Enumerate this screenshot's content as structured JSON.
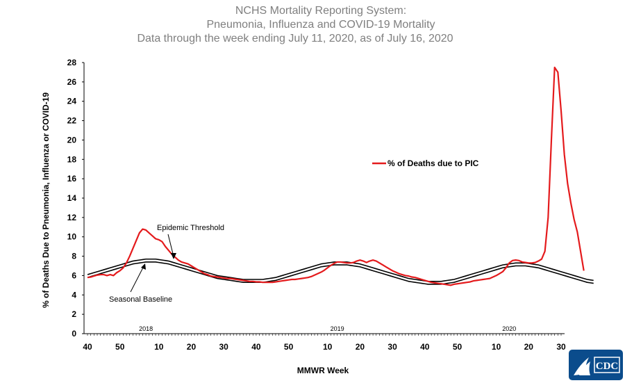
{
  "chart_data": {
    "type": "line",
    "title": [
      "NCHS Mortality Reporting System:",
      "Pneumonia, Influenza and COVID-19 Mortality",
      "Data through the week ending July 11, 2020, as of July 16, 2020"
    ],
    "xlabel": "MMWR Week",
    "ylabel": "% of Deaths Due to Pneumonia, Influenza or  COVID-19",
    "ylim": [
      0,
      28
    ],
    "yticks": [
      0,
      2,
      4,
      6,
      8,
      10,
      12,
      14,
      16,
      18,
      20,
      22,
      24,
      26,
      28
    ],
    "x_tick_labels": [
      {
        "label": "40",
        "index": 0
      },
      {
        "label": "50",
        "index": 10
      },
      {
        "label": "10",
        "index": 22
      },
      {
        "label": "20",
        "index": 32
      },
      {
        "label": "30",
        "index": 42
      },
      {
        "label": "40",
        "index": 52
      },
      {
        "label": "50",
        "index": 62
      },
      {
        "label": "10",
        "index": 74
      },
      {
        "label": "20",
        "index": 84
      },
      {
        "label": "30",
        "index": 94
      },
      {
        "label": "40",
        "index": 104
      },
      {
        "label": "50",
        "index": 114
      },
      {
        "label": "10",
        "index": 126
      },
      {
        "label": "20",
        "index": 136
      },
      {
        "label": "30",
        "index": 146
      }
    ],
    "year_labels": [
      {
        "label": "2018",
        "index": 18
      },
      {
        "label": "2019",
        "index": 77
      },
      {
        "label": "2020",
        "index": 130
      }
    ],
    "x_count": 147,
    "series": [
      {
        "name": "% of Deaths due to PIC",
        "color": "#e41a1c",
        "values": [
          5.8,
          5.85,
          5.95,
          6.05,
          6.1,
          6.1,
          6.0,
          6.1,
          6.0,
          6.3,
          6.5,
          6.8,
          7.3,
          8.0,
          8.8,
          9.6,
          10.4,
          10.8,
          10.7,
          10.4,
          10.1,
          9.8,
          9.7,
          9.5,
          9.0,
          8.6,
          8.2,
          7.9,
          7.6,
          7.4,
          7.3,
          7.2,
          7.0,
          6.8,
          6.6,
          6.4,
          6.2,
          6.1,
          5.95,
          5.9,
          5.85,
          5.8,
          5.75,
          5.7,
          5.7,
          5.65,
          5.6,
          5.55,
          5.5,
          5.45,
          5.4,
          5.4,
          5.35,
          5.35,
          5.3,
          5.3,
          5.3,
          5.3,
          5.35,
          5.4,
          5.45,
          5.5,
          5.55,
          5.6,
          5.6,
          5.65,
          5.7,
          5.75,
          5.8,
          5.9,
          6.05,
          6.2,
          6.35,
          6.55,
          6.8,
          7.05,
          7.25,
          7.4,
          7.4,
          7.35,
          7.3,
          7.3,
          7.35,
          7.5,
          7.6,
          7.5,
          7.35,
          7.5,
          7.6,
          7.5,
          7.3,
          7.1,
          6.9,
          6.7,
          6.5,
          6.35,
          6.2,
          6.1,
          6.0,
          5.95,
          5.85,
          5.8,
          5.7,
          5.6,
          5.5,
          5.4,
          5.3,
          5.25,
          5.2,
          5.15,
          5.1,
          5.05,
          5.0,
          5.1,
          5.15,
          5.2,
          5.25,
          5.3,
          5.35,
          5.45,
          5.5,
          5.55,
          5.6,
          5.65,
          5.7,
          5.85,
          6.0,
          6.2,
          6.4,
          6.8,
          7.3,
          7.55,
          7.6,
          7.55,
          7.4,
          7.35,
          7.3,
          7.3,
          7.35,
          7.5,
          7.7,
          8.5,
          12.0,
          20.0,
          27.5,
          27.0,
          23.0,
          18.5,
          15.5,
          13.5,
          11.8,
          10.5,
          8.5,
          6.5
        ]
      },
      {
        "name": "Epidemic Threshold",
        "color": "#000000",
        "values": [
          6.1,
          6.2,
          6.3,
          6.4,
          6.5,
          6.6,
          6.7,
          6.8,
          6.9,
          7.0,
          7.1,
          7.2,
          7.3,
          7.4,
          7.5,
          7.55,
          7.6,
          7.65,
          7.7,
          7.7,
          7.7,
          7.7,
          7.65,
          7.6,
          7.55,
          7.5,
          7.4,
          7.3,
          7.2,
          7.1,
          7.0,
          6.9,
          6.8,
          6.7,
          6.6,
          6.5,
          6.4,
          6.3,
          6.2,
          6.1,
          6.0,
          5.95,
          5.9,
          5.85,
          5.8,
          5.75,
          5.7,
          5.65,
          5.6,
          5.6,
          5.6,
          5.6,
          5.6,
          5.6,
          5.6,
          5.65,
          5.7,
          5.75,
          5.8,
          5.9,
          6.0,
          6.1,
          6.2,
          6.3,
          6.4,
          6.5,
          6.6,
          6.7,
          6.8,
          6.9,
          7.0,
          7.1,
          7.2,
          7.25,
          7.3,
          7.35,
          7.4,
          7.4,
          7.4,
          7.4,
          7.4,
          7.35,
          7.3,
          7.25,
          7.2,
          7.1,
          7.0,
          6.9,
          6.8,
          6.7,
          6.6,
          6.5,
          6.4,
          6.3,
          6.2,
          6.1,
          6.0,
          5.9,
          5.8,
          5.7,
          5.65,
          5.6,
          5.55,
          5.5,
          5.45,
          5.4,
          5.4,
          5.4,
          5.4,
          5.4,
          5.45,
          5.5,
          5.55,
          5.6,
          5.7,
          5.8,
          5.9,
          6.0,
          6.1,
          6.2,
          6.3,
          6.4,
          6.5,
          6.6,
          6.7,
          6.8,
          6.9,
          7.0,
          7.1,
          7.15,
          7.2,
          7.25,
          7.3,
          7.3,
          7.3,
          7.3,
          7.25,
          7.2,
          7.15,
          7.1,
          7.0,
          6.9,
          6.8,
          6.7,
          6.6,
          6.5,
          6.4,
          6.3,
          6.2,
          6.1,
          6.0,
          5.9,
          5.8,
          5.7,
          5.6,
          5.55,
          5.5
        ]
      },
      {
        "name": "Seasonal Baseline",
        "color": "#000000",
        "values": [
          5.8,
          5.9,
          6.0,
          6.1,
          6.2,
          6.3,
          6.4,
          6.5,
          6.6,
          6.7,
          6.8,
          6.9,
          7.0,
          7.1,
          7.2,
          7.25,
          7.3,
          7.35,
          7.4,
          7.4,
          7.4,
          7.4,
          7.35,
          7.3,
          7.25,
          7.2,
          7.1,
          7.0,
          6.9,
          6.8,
          6.7,
          6.6,
          6.5,
          6.4,
          6.3,
          6.2,
          6.1,
          6.0,
          5.9,
          5.8,
          5.7,
          5.65,
          5.6,
          5.55,
          5.5,
          5.45,
          5.4,
          5.35,
          5.3,
          5.3,
          5.3,
          5.3,
          5.3,
          5.3,
          5.3,
          5.35,
          5.4,
          5.45,
          5.5,
          5.6,
          5.7,
          5.8,
          5.9,
          6.0,
          6.1,
          6.2,
          6.3,
          6.4,
          6.5,
          6.6,
          6.7,
          6.8,
          6.9,
          6.95,
          7.0,
          7.05,
          7.1,
          7.1,
          7.1,
          7.1,
          7.1,
          7.05,
          7.0,
          6.95,
          6.9,
          6.8,
          6.7,
          6.6,
          6.5,
          6.4,
          6.3,
          6.2,
          6.1,
          6.0,
          5.9,
          5.8,
          5.7,
          5.6,
          5.5,
          5.4,
          5.35,
          5.3,
          5.25,
          5.2,
          5.15,
          5.1,
          5.1,
          5.1,
          5.1,
          5.1,
          5.15,
          5.2,
          5.25,
          5.3,
          5.4,
          5.5,
          5.6,
          5.7,
          5.8,
          5.9,
          6.0,
          6.1,
          6.2,
          6.3,
          6.4,
          6.5,
          6.6,
          6.7,
          6.8,
          6.85,
          6.9,
          6.95,
          7.0,
          7.0,
          7.0,
          7.0,
          6.95,
          6.9,
          6.85,
          6.8,
          6.7,
          6.6,
          6.5,
          6.4,
          6.3,
          6.2,
          6.1,
          6.0,
          5.9,
          5.8,
          5.7,
          5.6,
          5.5,
          5.4,
          5.3,
          5.25,
          5.2
        ]
      }
    ],
    "annotations": [
      {
        "text": "Epidemic Threshold",
        "target_series": "Epidemic Threshold"
      },
      {
        "text": "Seasonal Baseline",
        "target_series": "Seasonal Baseline"
      }
    ],
    "legend": {
      "entries": [
        "% of Deaths due to PIC"
      ],
      "placement": "right-middle"
    },
    "grid": false
  },
  "logo": {
    "text": "CDC"
  }
}
